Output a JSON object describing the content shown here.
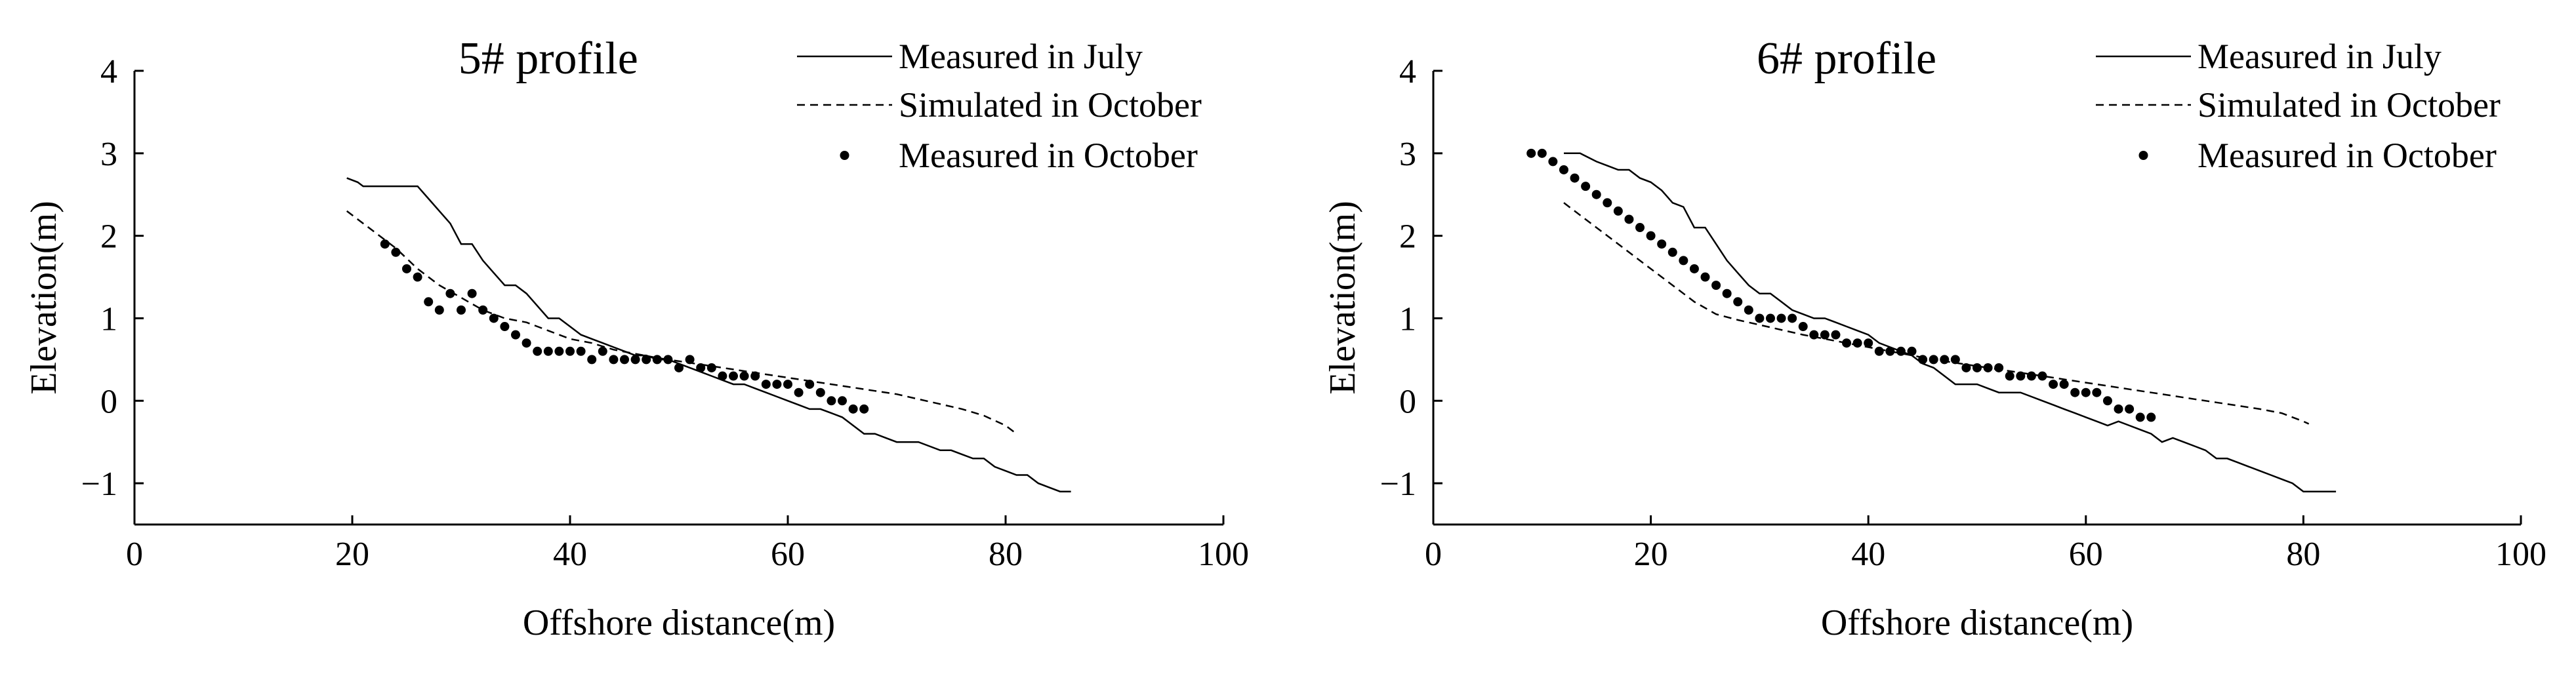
{
  "chart_data": [
    {
      "type": "line",
      "title": "5# profile",
      "xlabel": "Offshore distance(m)",
      "ylabel": "Elevation(m)",
      "xlim": [
        0,
        100
      ],
      "ylim": [
        -1.5,
        4
      ],
      "xticks": [
        0,
        20,
        40,
        60,
        80,
        100
      ],
      "yticks": [
        4,
        3,
        2,
        1,
        0,
        -1
      ],
      "ytick_labels": [
        "4",
        "3",
        "2",
        "1",
        "0",
        "−1"
      ],
      "grid": false,
      "legend_position": "top-right",
      "series": [
        {
          "name": "Measured in July",
          "style": "solid",
          "x": [
            19.5,
            20.5,
            21,
            26,
            27,
            28,
            29,
            30,
            31,
            32,
            33,
            34,
            35,
            36,
            37,
            38,
            39,
            40,
            41,
            42,
            43,
            44,
            45,
            46,
            47,
            48,
            49,
            50,
            51,
            52,
            53,
            54,
            55,
            56,
            57,
            58,
            59,
            60,
            61,
            62,
            63,
            64,
            65,
            66,
            67,
            68,
            69,
            70,
            71,
            72,
            73,
            74,
            75,
            76,
            77,
            78,
            79,
            80,
            81,
            82,
            83,
            84,
            85,
            86
          ],
          "y": [
            2.7,
            2.65,
            2.6,
            2.6,
            2.45,
            2.3,
            2.15,
            1.9,
            1.9,
            1.7,
            1.55,
            1.4,
            1.4,
            1.3,
            1.15,
            1.0,
            1.0,
            0.9,
            0.8,
            0.75,
            0.7,
            0.65,
            0.6,
            0.55,
            0.55,
            0.5,
            0.5,
            0.45,
            0.4,
            0.35,
            0.3,
            0.25,
            0.2,
            0.2,
            0.15,
            0.1,
            0.05,
            0.0,
            -0.05,
            -0.1,
            -0.1,
            -0.15,
            -0.2,
            -0.3,
            -0.4,
            -0.4,
            -0.45,
            -0.5,
            -0.5,
            -0.5,
            -0.55,
            -0.6,
            -0.6,
            -0.65,
            -0.7,
            -0.7,
            -0.8,
            -0.85,
            -0.9,
            -0.9,
            -1.0,
            -1.05,
            -1.1,
            -1.1
          ]
        },
        {
          "name": "Simulated in October",
          "style": "dashed",
          "x": [
            19.5,
            22,
            24,
            26,
            28,
            30,
            32,
            34,
            36,
            38,
            40,
            42,
            44,
            46,
            48,
            50,
            52,
            54,
            56,
            58,
            60,
            62,
            64,
            66,
            68,
            70,
            72,
            74,
            76,
            78,
            80,
            81
          ],
          "y": [
            2.3,
            2.05,
            1.85,
            1.6,
            1.4,
            1.25,
            1.1,
            1.0,
            0.95,
            0.85,
            0.75,
            0.7,
            0.62,
            0.57,
            0.52,
            0.48,
            0.44,
            0.4,
            0.36,
            0.32,
            0.28,
            0.24,
            0.2,
            0.16,
            0.12,
            0.08,
            0.02,
            -0.04,
            -0.1,
            -0.18,
            -0.3,
            -0.4
          ]
        },
        {
          "name": "Measured in October",
          "style": "dots",
          "x": [
            23,
            24,
            25,
            26,
            27,
            28,
            29,
            30,
            31,
            32,
            33,
            34,
            35,
            36,
            37,
            38,
            39,
            40,
            41,
            42,
            43,
            44,
            45,
            46,
            47,
            48,
            49,
            50,
            51,
            52,
            53,
            54,
            55,
            56,
            57,
            58,
            59,
            60,
            61,
            62,
            63,
            64,
            65,
            66,
            67
          ],
          "y": [
            1.9,
            1.8,
            1.6,
            1.5,
            1.2,
            1.1,
            1.3,
            1.1,
            1.3,
            1.1,
            1.0,
            0.9,
            0.8,
            0.7,
            0.6,
            0.6,
            0.6,
            0.6,
            0.6,
            0.5,
            0.6,
            0.5,
            0.5,
            0.5,
            0.5,
            0.5,
            0.5,
            0.4,
            0.5,
            0.4,
            0.4,
            0.3,
            0.3,
            0.3,
            0.3,
            0.2,
            0.2,
            0.2,
            0.1,
            0.2,
            0.1,
            0.0,
            -0.0,
            -0.1,
            -0.1
          ]
        }
      ]
    },
    {
      "type": "line",
      "title": "6# profile",
      "xlabel": "Offshore distance(m)",
      "ylabel": "Elevation(m)",
      "xlim": [
        0,
        100
      ],
      "ylim": [
        -1.5,
        4
      ],
      "xticks": [
        0,
        20,
        40,
        60,
        80,
        100
      ],
      "yticks": [
        4,
        3,
        2,
        1,
        0,
        -1
      ],
      "ytick_labels": [
        "4",
        "3",
        "2",
        "1",
        "0",
        "−1"
      ],
      "grid": false,
      "legend_position": "top-right",
      "series": [
        {
          "name": "Measured in July",
          "style": "solid",
          "x": [
            12,
            13.5,
            15,
            16,
            17,
            18,
            19,
            20,
            21,
            22,
            23,
            24,
            25,
            26,
            27,
            28,
            29,
            30,
            31,
            32,
            33,
            34,
            35,
            36,
            37,
            38,
            39,
            40,
            41,
            42,
            43,
            44,
            45,
            46,
            47,
            48,
            49,
            50,
            51,
            52,
            53,
            54,
            55,
            56,
            57,
            58,
            59,
            60,
            61,
            62,
            63,
            64,
            65,
            66,
            67,
            68,
            69,
            70,
            71,
            72,
            73,
            74,
            75,
            76,
            77,
            78,
            79,
            80,
            81,
            82,
            83
          ],
          "y": [
            3.0,
            3.0,
            2.9,
            2.85,
            2.8,
            2.8,
            2.7,
            2.65,
            2.55,
            2.4,
            2.35,
            2.1,
            2.1,
            1.9,
            1.7,
            1.55,
            1.4,
            1.3,
            1.3,
            1.2,
            1.1,
            1.05,
            1.0,
            1.0,
            0.95,
            0.9,
            0.85,
            0.8,
            0.7,
            0.65,
            0.6,
            0.55,
            0.45,
            0.4,
            0.3,
            0.2,
            0.2,
            0.2,
            0.15,
            0.1,
            0.1,
            0.1,
            0.05,
            0.0,
            -0.05,
            -0.1,
            -0.15,
            -0.2,
            -0.25,
            -0.3,
            -0.25,
            -0.3,
            -0.35,
            -0.4,
            -0.5,
            -0.45,
            -0.5,
            -0.55,
            -0.6,
            -0.7,
            -0.7,
            -0.75,
            -0.8,
            -0.85,
            -0.9,
            -0.95,
            -1.0,
            -1.1,
            -1.1,
            -1.1,
            -1.1
          ]
        },
        {
          "name": "Simulated in October",
          "style": "dashed",
          "x": [
            12,
            14,
            16,
            18,
            20,
            22,
            24,
            26,
            28,
            30,
            32,
            34,
            36,
            38,
            40,
            42,
            44,
            46,
            48,
            50,
            52,
            54,
            56,
            58,
            60,
            62,
            64,
            66,
            68,
            70,
            72,
            74,
            76,
            78,
            80,
            80.5
          ],
          "y": [
            2.4,
            2.2,
            2.0,
            1.8,
            1.6,
            1.4,
            1.2,
            1.05,
            0.98,
            0.92,
            0.86,
            0.8,
            0.75,
            0.7,
            0.65,
            0.6,
            0.55,
            0.5,
            0.46,
            0.42,
            0.38,
            0.34,
            0.3,
            0.26,
            0.22,
            0.18,
            0.14,
            0.1,
            0.06,
            0.02,
            -0.02,
            -0.06,
            -0.1,
            -0.15,
            -0.25,
            -0.28
          ]
        },
        {
          "name": "Measured in October",
          "style": "dots",
          "x": [
            9,
            10,
            11,
            12,
            13,
            14,
            15,
            16,
            17,
            18,
            19,
            20,
            21,
            22,
            23,
            24,
            25,
            26,
            27,
            28,
            29,
            30,
            31,
            32,
            33,
            34,
            35,
            36,
            37,
            38,
            39,
            40,
            41,
            42,
            43,
            44,
            45,
            46,
            47,
            48,
            49,
            50,
            51,
            52,
            53,
            54,
            55,
            56,
            57,
            58,
            59,
            60,
            61,
            62,
            63,
            64,
            65,
            66
          ],
          "y": [
            3.0,
            3.0,
            2.9,
            2.8,
            2.7,
            2.6,
            2.5,
            2.4,
            2.3,
            2.2,
            2.1,
            2.0,
            1.9,
            1.8,
            1.7,
            1.6,
            1.5,
            1.4,
            1.3,
            1.2,
            1.1,
            1.0,
            1.0,
            1.0,
            1.0,
            0.9,
            0.8,
            0.8,
            0.8,
            0.7,
            0.7,
            0.7,
            0.6,
            0.6,
            0.6,
            0.6,
            0.5,
            0.5,
            0.5,
            0.5,
            0.4,
            0.4,
            0.4,
            0.4,
            0.3,
            0.3,
            0.3,
            0.3,
            0.2,
            0.2,
            0.1,
            0.1,
            0.1,
            0.0,
            -0.1,
            -0.1,
            -0.2,
            -0.2
          ]
        }
      ]
    }
  ]
}
